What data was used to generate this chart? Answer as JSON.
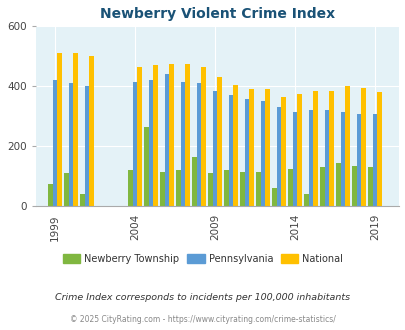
{
  "title": "Newberry Violent Crime Index",
  "plot_years": [
    1999,
    2000,
    2001,
    2004,
    2005,
    2006,
    2007,
    2008,
    2009,
    2010,
    2011,
    2012,
    2013,
    2014,
    2015,
    2016,
    2017,
    2018,
    2019
  ],
  "nb_vals": [
    75,
    110,
    40,
    120,
    265,
    115,
    120,
    165,
    110,
    120,
    115,
    115,
    60,
    125,
    42,
    130,
    145,
    135,
    130
  ],
  "pa_vals": [
    420,
    410,
    400,
    415,
    420,
    440,
    415,
    410,
    385,
    370,
    358,
    350,
    330,
    315,
    320,
    320,
    315,
    308,
    308
  ],
  "nat_vals": [
    510,
    510,
    500,
    465,
    470,
    475,
    475,
    465,
    430,
    405,
    390,
    390,
    365,
    375,
    383,
    383,
    400,
    395,
    380
  ],
  "newberry_color": "#80b740",
  "pennsylvania_color": "#5b9bd5",
  "national_color": "#ffc000",
  "bg_color": "#e4f2f7",
  "ylim": [
    0,
    600
  ],
  "yticks": [
    0,
    200,
    400,
    600
  ],
  "xtick_years": [
    1999,
    2004,
    2009,
    2014,
    2019
  ],
  "legend_labels": [
    "Newberry Township",
    "Pennsylvania",
    "National"
  ],
  "note": "Crime Index corresponds to incidents per 100,000 inhabitants",
  "copyright": "© 2025 CityRating.com - https://www.cityrating.com/crime-statistics/"
}
